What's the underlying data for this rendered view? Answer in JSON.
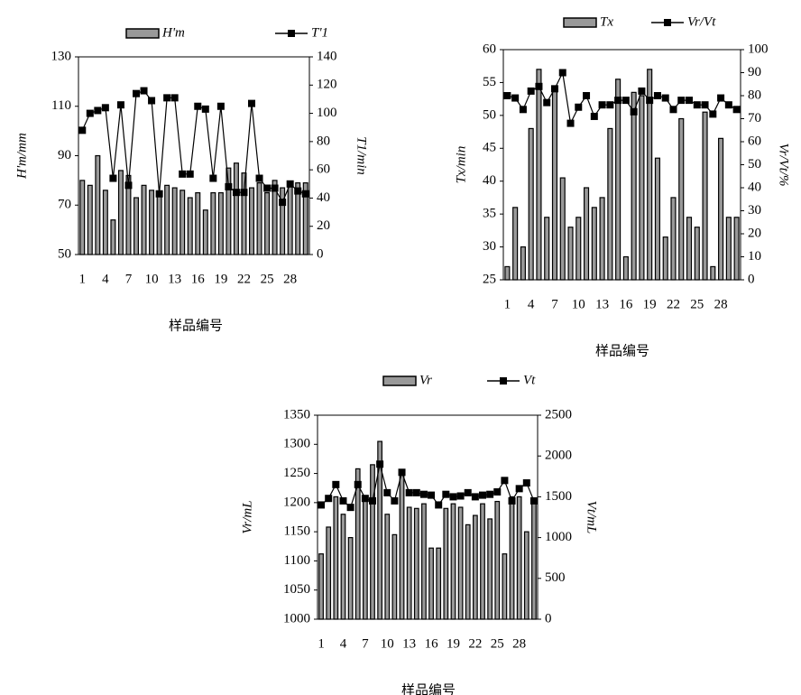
{
  "chart_data": [
    {
      "type": "bar_line",
      "x_label": "样品编号",
      "y_label": "H'm/mm",
      "y2_label": "T1/min",
      "categories": [
        "1",
        null,
        null,
        "4",
        null,
        null,
        "7",
        null,
        null,
        "10",
        null,
        null,
        "13",
        null,
        null,
        "16",
        null,
        null,
        "19",
        null,
        null,
        "22",
        null,
        null,
        "25",
        null,
        null,
        "28",
        null,
        null
      ],
      "series": [
        {
          "name": "H'm",
          "type": "bar",
          "color": "#999999",
          "values": [
            80,
            78,
            90,
            76,
            64,
            84,
            82,
            73,
            78,
            76,
            75,
            78,
            77,
            76,
            73,
            75,
            68,
            75,
            75,
            85,
            87,
            83,
            77,
            79,
            75,
            80,
            77,
            78,
            79,
            79
          ]
        },
        {
          "name": "T'1",
          "type": "line",
          "axis": "y2",
          "color": "#000000",
          "values": [
            88,
            100,
            102,
            104,
            54,
            106,
            49,
            114,
            116,
            109,
            43,
            111,
            111,
            57,
            57,
            105,
            103,
            54,
            105,
            48,
            44,
            44,
            107,
            54,
            47,
            47,
            37,
            50,
            45,
            43
          ]
        }
      ],
      "ylim": [
        50,
        130
      ],
      "yticks": [
        50,
        70,
        90,
        110,
        130
      ],
      "y2lim": [
        0,
        140
      ],
      "y2ticks": [
        0,
        20,
        40,
        60,
        80,
        100,
        120,
        140
      ]
    },
    {
      "type": "bar_line",
      "x_label": "样品编号",
      "y_label": "Tx/min",
      "y2_label": "Vr/Vt/%",
      "categories": [
        "1",
        null,
        null,
        "4",
        null,
        null,
        "7",
        null,
        null,
        "10",
        null,
        null,
        "13",
        null,
        null,
        "16",
        null,
        null,
        "19",
        null,
        null,
        "22",
        null,
        null,
        "25",
        null,
        null,
        "28",
        null,
        null
      ],
      "series": [
        {
          "name": "Tx",
          "type": "bar",
          "color": "#999999",
          "values": [
            27,
            36,
            30,
            48,
            57,
            34.5,
            54,
            40.5,
            33,
            34.5,
            39,
            36,
            37.5,
            48,
            55.5,
            28.5,
            53.5,
            53,
            57,
            43.5,
            31.5,
            37.5,
            49.5,
            34.5,
            33,
            50.5,
            27,
            46.5,
            34.5,
            34.5
          ]
        },
        {
          "name": "Vr/Vt",
          "type": "line",
          "axis": "y2",
          "color": "#000000",
          "values": [
            80,
            79,
            74,
            82,
            84,
            77,
            83,
            90,
            68,
            75,
            80,
            71,
            76,
            76,
            78,
            78,
            73,
            82,
            78,
            80,
            79,
            74,
            78,
            78,
            76,
            76,
            72,
            79,
            76,
            74
          ]
        }
      ],
      "ylim": [
        25,
        60
      ],
      "yticks": [
        25,
        30,
        35,
        40,
        45,
        50,
        55,
        60
      ],
      "y2lim": [
        0,
        100
      ],
      "y2ticks": [
        0,
        10,
        20,
        30,
        40,
        50,
        60,
        70,
        80,
        90,
        100
      ]
    },
    {
      "type": "bar_line",
      "x_label": "样品编号",
      "y_label": "Vr/mL",
      "y2_label": "Vt/mL",
      "categories": [
        "1",
        null,
        null,
        "4",
        null,
        null,
        "7",
        null,
        null,
        "10",
        null,
        null,
        "13",
        null,
        null,
        "16",
        null,
        null,
        "19",
        null,
        null,
        "22",
        null,
        null,
        "25",
        null,
        null,
        "28",
        null,
        null
      ],
      "series": [
        {
          "name": "Vr",
          "type": "bar",
          "color": "#999999",
          "values": [
            1112,
            1158,
            1210,
            1180,
            1140,
            1258,
            1205,
            1265,
            1305,
            1180,
            1145,
            1255,
            1192,
            1190,
            1198,
            1122,
            1122,
            1190,
            1198,
            1192,
            1162,
            1178,
            1198,
            1172,
            1202,
            1112,
            1210,
            1210,
            1150,
            1205
          ]
        },
        {
          "name": "Vt",
          "type": "line",
          "axis": "y2",
          "color": "#000000",
          "values": [
            1400,
            1480,
            1650,
            1450,
            1370,
            1650,
            1480,
            1450,
            1900,
            1550,
            1450,
            1800,
            1550,
            1550,
            1530,
            1520,
            1400,
            1530,
            1500,
            1510,
            1550,
            1500,
            1520,
            1530,
            1560,
            1700,
            1450,
            1600,
            1670,
            1450
          ]
        }
      ],
      "ylim": [
        1000,
        1350
      ],
      "yticks": [
        1000,
        1050,
        1100,
        1150,
        1200,
        1250,
        1300,
        1350
      ],
      "y2lim": [
        0,
        2500
      ],
      "y2ticks": [
        0,
        500,
        1000,
        1500,
        2000,
        2500
      ]
    }
  ]
}
